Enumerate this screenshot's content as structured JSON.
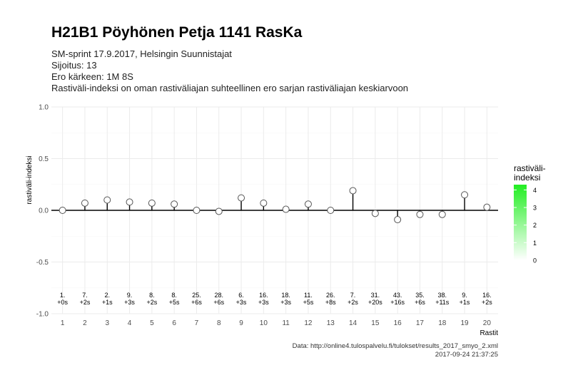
{
  "title": "H21B1 Pöyhönen Petja 1141 RasKa",
  "subtitle_lines": [
    "SM-sprint 17.9.2017, Helsingin Suunnistajat",
    "Sijoitus: 13",
    "Ero kärkeen: 1M 8S",
    "Rastiväli-indeksi on oman rastiväliajan suhteellinen ero sarjan rastiväliajan keskiarvoon"
  ],
  "caption_lines": [
    "Data: http://online4.tulospalvelu.fi/tulokset/results_2017_smyo_2.xml",
    "2017-09-24 21:37:25"
  ],
  "chart_data": {
    "type": "scatter",
    "xlabel": "Rastit",
    "ylabel": "rastiväli-indeksi",
    "x": [
      1,
      2,
      3,
      4,
      5,
      6,
      7,
      8,
      9,
      10,
      11,
      12,
      13,
      14,
      15,
      16,
      17,
      18,
      19,
      20
    ],
    "y": [
      0.0,
      0.07,
      0.1,
      0.08,
      0.07,
      0.06,
      0.0,
      -0.01,
      0.12,
      0.07,
      0.01,
      0.06,
      0.0,
      0.19,
      -0.03,
      -0.09,
      -0.04,
      -0.04,
      0.15,
      0.03
    ],
    "point_labels": [
      [
        "1.",
        "+0s"
      ],
      [
        "7.",
        "+2s"
      ],
      [
        "2.",
        "+1s"
      ],
      [
        "9.",
        "+3s"
      ],
      [
        "8.",
        "+2s"
      ],
      [
        "8.",
        "+5s"
      ],
      [
        "25.",
        "+6s"
      ],
      [
        "28.",
        "+6s"
      ],
      [
        "6.",
        "+3s"
      ],
      [
        "16.",
        "+3s"
      ],
      [
        "18.",
        "+3s"
      ],
      [
        "11.",
        "+5s"
      ],
      [
        "26.",
        "+8s"
      ],
      [
        "7.",
        "+2s"
      ],
      [
        "31.",
        "+20s"
      ],
      [
        "43.",
        "+16s"
      ],
      [
        "35.",
        "+6s"
      ],
      [
        "38.",
        "+11s"
      ],
      [
        "9.",
        "+1s"
      ],
      [
        "16.",
        "+2s"
      ]
    ],
    "xlim": [
      0.5,
      20.5
    ],
    "ylim": [
      -1.0,
      1.0
    ],
    "yticks": [
      "-1.0",
      "-0.5",
      "0.0",
      "0.5",
      "1.0"
    ],
    "xticks": [
      "1",
      "2",
      "3",
      "4",
      "5",
      "6",
      "7",
      "8",
      "9",
      "10",
      "11",
      "12",
      "13",
      "14",
      "15",
      "16",
      "17",
      "18",
      "19",
      "20"
    ],
    "grid": true,
    "legend": {
      "title_lines": [
        "rastiväli-",
        "indeksi"
      ],
      "ticks": [
        "0",
        "1",
        "2",
        "3",
        "4"
      ],
      "range": [
        0,
        4.3
      ],
      "color_low": "#ffffff",
      "color_high": "#22ee22"
    },
    "colors": {
      "line": "#000000",
      "point_fill": "#ffffff",
      "point_stroke": "#555555",
      "grid": "#ebebeb"
    }
  }
}
